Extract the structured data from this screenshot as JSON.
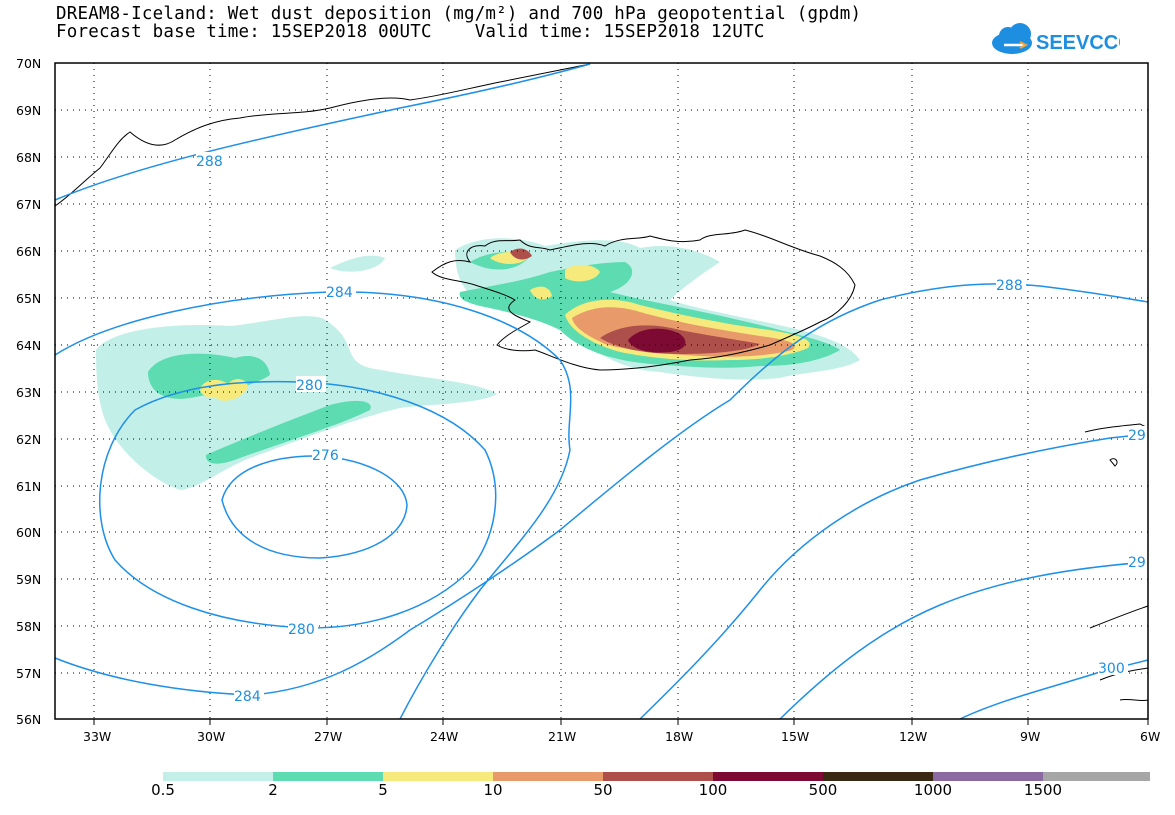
{
  "title": {
    "line1": "DREAM8-Iceland: Wet dust deposition (mg/m²) and 700 hPa geopotential (gpdm)",
    "line2": "Forecast base time: 15SEP2018 00UTC    Valid time: 15SEP2018 12UTC"
  },
  "logo": {
    "text": "SEEVCCC",
    "color": "#1e8fe0"
  },
  "map": {
    "lon_range": [
      -34,
      -6
    ],
    "lat_range": [
      56,
      70
    ],
    "lat_labels": [
      "70N",
      "69N",
      "68N",
      "67N",
      "66N",
      "65N",
      "64N",
      "63N",
      "62N",
      "61N",
      "60N",
      "59N",
      "58N",
      "57N",
      "56N"
    ],
    "lon_labels": [
      "33W",
      "30W",
      "27W",
      "24W",
      "21W",
      "18W",
      "15W",
      "12W",
      "9W",
      "6W"
    ],
    "grid": "dotted",
    "contour_color": "#1e90e8",
    "contour_labels": [
      "288",
      "284",
      "280",
      "276",
      "280",
      "284",
      "288",
      "29",
      "29",
      "300"
    ]
  },
  "colorbar": {
    "labels": [
      "0.5",
      "2",
      "5",
      "10",
      "50",
      "100",
      "500",
      "1000",
      "1500"
    ],
    "colors": [
      "#c2f0e8",
      "#5cdcb0",
      "#f6ea7c",
      "#e89a6a",
      "#ad504c",
      "#7d0a32",
      "#3a2812",
      "#8a6aa0",
      "#a6a6a6"
    ]
  }
}
